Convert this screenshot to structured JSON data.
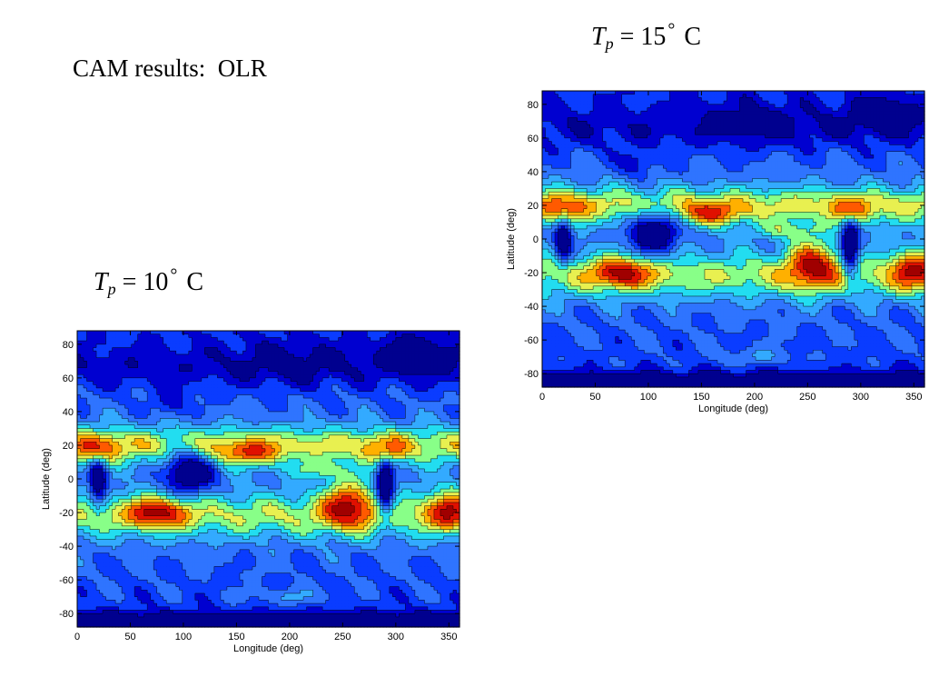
{
  "slide": {
    "title": "CAM results:  OLR"
  },
  "labels": {
    "right": {
      "symbol": "T",
      "subscript": "p",
      "equals": "=",
      "value": "15",
      "degree": "°",
      "unit": "C"
    },
    "left": {
      "symbol": "T",
      "subscript": "p",
      "equals": "=",
      "value": "10",
      "degree": "°",
      "unit": "C"
    }
  },
  "colors": {
    "palette": [
      "#00008f",
      "#0000d0",
      "#0a3cff",
      "#2f74ff",
      "#33aaff",
      "#22ddf0",
      "#88ff88",
      "#e8f050",
      "#ffb000",
      "#ff5a00",
      "#e01000",
      "#a00000"
    ],
    "contour_line": "#000000"
  },
  "chart_data": [
    {
      "type": "heatmap",
      "variable": "OLR",
      "case": "Tp = 15 C",
      "xlabel": "Longitude (deg)",
      "ylabel": "Latitude (deg)",
      "xlim": [
        0,
        360
      ],
      "ylim": [
        -88,
        88
      ],
      "x_ticks": [
        0,
        50,
        100,
        150,
        200,
        250,
        300,
        350
      ],
      "y_ticks": [
        -80,
        -60,
        -40,
        -20,
        0,
        20,
        40,
        60,
        80
      ],
      "contours": true,
      "colorbar": false
    },
    {
      "type": "heatmap",
      "variable": "OLR",
      "case": "Tp = 10 C",
      "xlabel": "Longitude (deg)",
      "ylabel": "Latitude (deg)",
      "xlim": [
        0,
        360
      ],
      "ylim": [
        -88,
        88
      ],
      "x_ticks": [
        0,
        50,
        100,
        150,
        200,
        250,
        300,
        350
      ],
      "y_ticks": [
        -80,
        -60,
        -40,
        -20,
        0,
        20,
        40,
        60,
        80
      ],
      "contours": true,
      "colorbar": false
    }
  ]
}
